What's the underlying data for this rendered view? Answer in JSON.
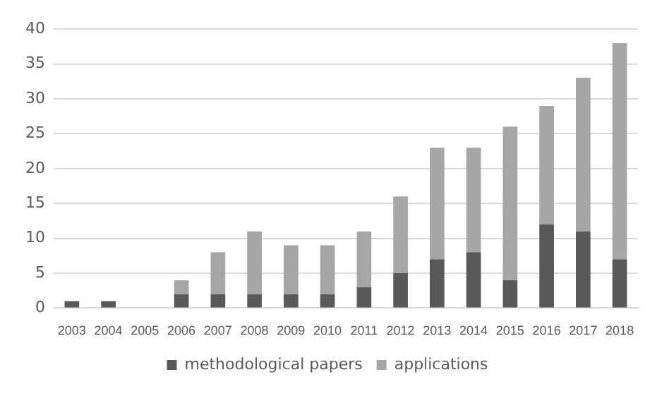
{
  "chart_data": {
    "type": "bar",
    "stacked": true,
    "categories": [
      "2003",
      "2004",
      "2005",
      "2006",
      "2007",
      "2008",
      "2009",
      "2010",
      "2011",
      "2012",
      "2013",
      "2014",
      "2015",
      "2016",
      "2017",
      "2018"
    ],
    "series": [
      {
        "name": "methodological papers",
        "color": "#595959",
        "values": [
          1,
          1,
          0,
          2,
          2,
          2,
          2,
          2,
          3,
          5,
          7,
          8,
          4,
          12,
          11,
          7
        ]
      },
      {
        "name": "applications",
        "color": "#a6a6a6",
        "values": [
          0,
          0,
          0,
          2,
          6,
          9,
          7,
          7,
          8,
          11,
          16,
          15,
          22,
          17,
          22,
          31
        ]
      }
    ],
    "ylim": [
      0,
      40
    ],
    "yticks": [
      0,
      5,
      10,
      15,
      20,
      25,
      30,
      35,
      40
    ],
    "grid": "y",
    "legend": "bottom"
  }
}
